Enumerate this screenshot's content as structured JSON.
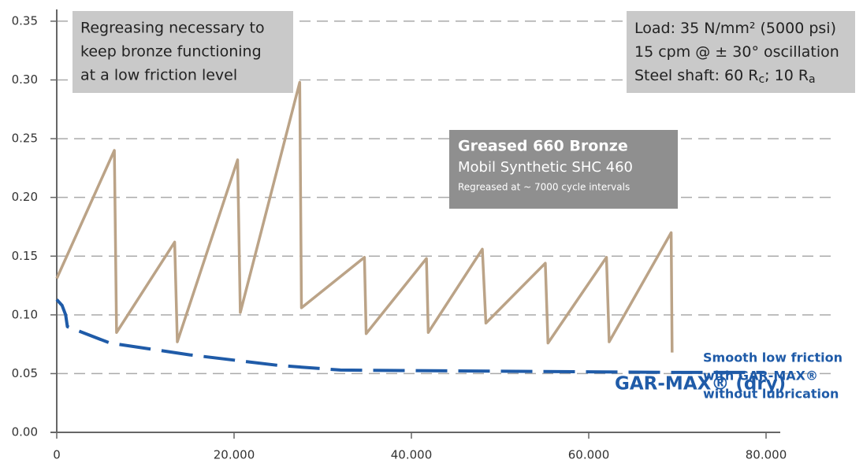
{
  "chart_data": {
    "type": "line",
    "xlim": [
      0,
      81600
    ],
    "ylim": [
      0,
      0.36
    ],
    "xticks": [
      0,
      {
        "value": 20000,
        "label": "20.000"
      },
      {
        "value": 40000,
        "label": "40.000"
      },
      {
        "value": 60000,
        "label": "60.000"
      },
      {
        "value": 80000,
        "label": "80.000"
      }
    ],
    "yticks": [
      {
        "value": 0,
        "label": "0.00"
      },
      {
        "value": 0.05,
        "label": "0.05"
      },
      {
        "value": 0.1,
        "label": "0.10"
      },
      {
        "value": 0.15,
        "label": "0.15"
      },
      {
        "value": 0.2,
        "label": "0.20"
      },
      {
        "value": 0.25,
        "label": "0.25"
      },
      {
        "value": 0.3,
        "label": "0.30"
      },
      {
        "value": 0.35,
        "label": "0.35"
      }
    ],
    "grid": true,
    "series": [
      {
        "name": "Greased 660 Bronze",
        "color": "#bba387",
        "details": [
          "Mobil Synthetic SHC 460",
          "Regreased at ~ 7000 cycle intervals"
        ],
        "x": [
          0,
          6500,
          6750,
          13300,
          13600,
          20400,
          20700,
          27400,
          27600,
          34700,
          34900,
          41700,
          41900,
          48000,
          48400,
          55100,
          55400,
          62000,
          62300,
          69300,
          69400
        ],
        "values": [
          0.131,
          0.24,
          0.085,
          0.162,
          0.077,
          0.232,
          0.102,
          0.298,
          0.106,
          0.149,
          0.084,
          0.148,
          0.085,
          0.156,
          0.093,
          0.144,
          0.076,
          0.149,
          0.077,
          0.17,
          0.068
        ]
      },
      {
        "name": "GAR-MAX® (dry)",
        "color": "#1f5ba8",
        "x": [
          0,
          600,
          1000,
          1200,
          6000,
          15000,
          25000,
          32000,
          50000,
          70000,
          79800
        ],
        "values": [
          0.113,
          0.108,
          0.1,
          0.09,
          0.076,
          0.066,
          0.057,
          0.053,
          0.052,
          0.051,
          0.051
        ]
      }
    ],
    "note_left": [
      "Regreasing necessary to",
      "keep bronze functioning",
      "at a low friction level"
    ],
    "test_conditions": [
      [
        "Load: 35 N/mm² (5000 psi)"
      ],
      [
        "15 cpm @ ± 30° oscillation"
      ],
      [
        "Steel shaft: 60 R",
        "c",
        "; 10 R",
        "a"
      ]
    ],
    "note_right": [
      "Smooth low friction",
      "with GAR-MAX®",
      "without lubrication"
    ]
  }
}
